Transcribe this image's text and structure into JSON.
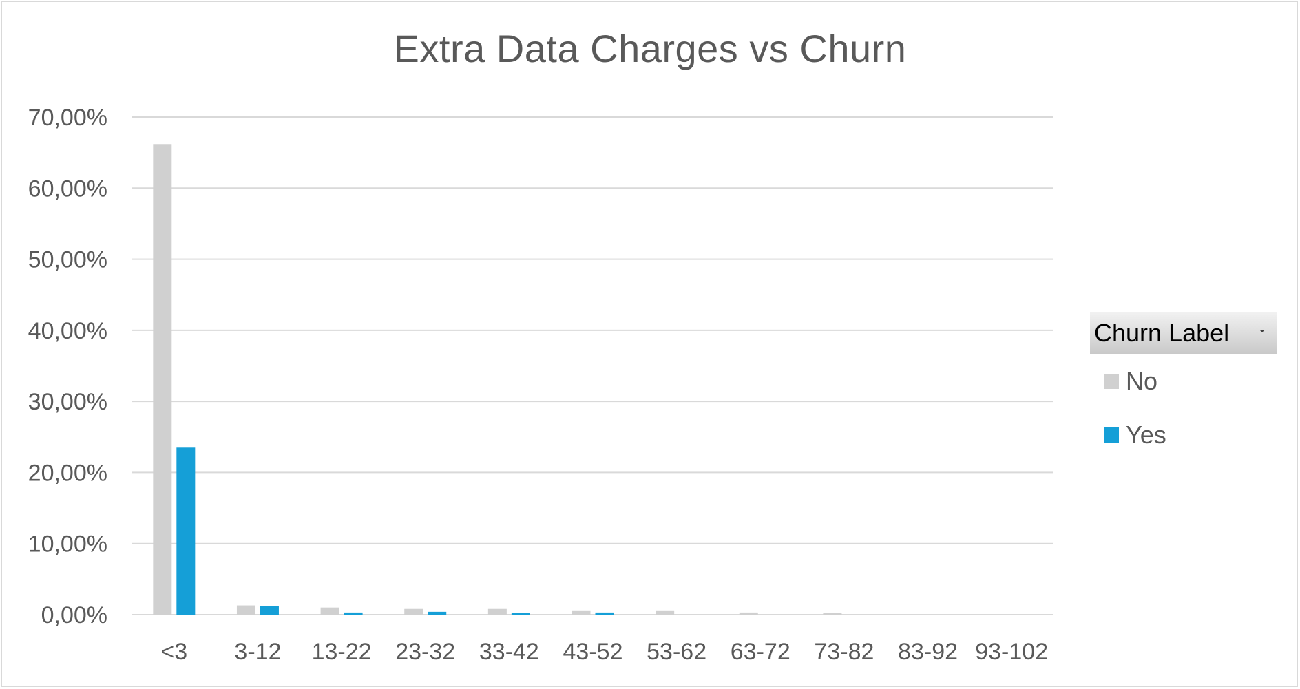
{
  "chart_data": {
    "type": "bar",
    "title": "Extra Data Charges vs Churn",
    "xlabel": "",
    "ylabel": "",
    "categories": [
      "<3",
      "3-12",
      "13-22",
      "23-32",
      "33-42",
      "43-52",
      "53-62",
      "63-72",
      "73-82",
      "83-92",
      "93-102"
    ],
    "yticks": [
      "0,00%",
      "10,00%",
      "20,00%",
      "30,00%",
      "40,00%",
      "50,00%",
      "60,00%",
      "70,00%"
    ],
    "ylim": [
      0,
      70
    ],
    "grid": true,
    "legend_placement": "right",
    "series": [
      {
        "name": "No",
        "color": "#d0d0d0",
        "values": [
          66.2,
          1.3,
          1.0,
          0.8,
          0.8,
          0.6,
          0.6,
          0.3,
          0.2,
          0.0,
          0.0
        ]
      },
      {
        "name": "Yes",
        "color": "#159fd7",
        "values": [
          23.5,
          1.2,
          0.3,
          0.4,
          0.2,
          0.3,
          0.0,
          0.0,
          0.0,
          0.0,
          0.0
        ]
      }
    ]
  },
  "legend": {
    "title": "Churn Label"
  }
}
